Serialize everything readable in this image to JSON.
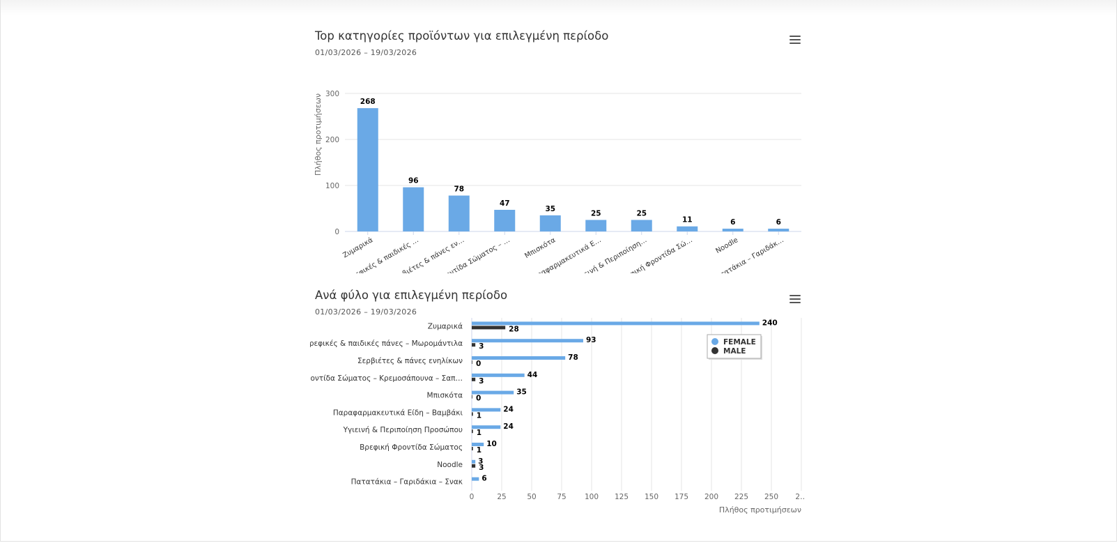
{
  "charts": [
    {
      "title": "Top κατηγορίες προϊόντων για επιλεγμένη περίοδο",
      "subtitle": "01/03/2026 – 19/03/2026",
      "menu_icon": "hamburger-menu-icon"
    },
    {
      "title": "Ανά φύλο για επιλεγμένη περίοδο",
      "subtitle": "01/03/2026 – 19/03/2026",
      "menu_icon": "hamburger-menu-icon"
    }
  ],
  "colors": {
    "primary": "#6aa9e6",
    "male": "#333333",
    "grid": "#e6e6e6",
    "axis": "#ccd6eb",
    "text": "#333333"
  },
  "chart_data": [
    {
      "type": "bar",
      "title": "Top κατηγορίες προϊόντων για επιλεγμένη περίοδο",
      "subtitle": "01/03/2026 – 19/03/2026",
      "ylabel": "Πλήθος προτιμήσεων",
      "ylim": [
        0,
        300
      ],
      "yticks": [
        "0",
        "100",
        "200",
        "300"
      ],
      "grid": true,
      "categories": [
        "Ζυμαρικά",
        "Βρεφικές & παιδικές …",
        "Σερβιέτες & πάνες εν…",
        "Φροντίδα Σώματος – …",
        "Μπισκότα",
        "Παραφαρμακευτικά Ε…",
        "Υγιεινή & Περιποίηση…",
        "Βρεφική Φροντίδα Σώ…",
        "Noodle",
        "Πατατάκια – Γαριδάκ…"
      ],
      "values": [
        268,
        96,
        78,
        47,
        35,
        25,
        25,
        11,
        6,
        6
      ]
    },
    {
      "type": "bar",
      "orientation": "horizontal",
      "title": "Ανά φύλο για επιλεγμένη περίοδο",
      "subtitle": "01/03/2026 – 19/03/2026",
      "xlabel": "Πλήθος προτιμήσεων",
      "xlim": [
        0,
        275
      ],
      "xticks": [
        "0",
        "25",
        "50",
        "75",
        "100",
        "125",
        "150",
        "175",
        "200",
        "225",
        "250",
        "2…"
      ],
      "grid": true,
      "legend": "top-right",
      "categories": [
        "Ζυμαρικά",
        "Βρεφικές & παιδικές πάνες – Μωρομάντιλα",
        "Σερβιέτες & πάνες ενηλίκων",
        "Φροντίδα Σώματος – Κρεμοσάπουνα – Σαπ…",
        "Μπισκότα",
        "Παραφαρμακευτικά Είδη – Βαμβάκι",
        "Υγιεινή & Περιποίηση Προσώπου",
        "Βρεφική Φροντίδα Σώματος",
        "Noodle",
        "Πατατάκια – Γαριδάκια – Σνακ"
      ],
      "series": [
        {
          "name": "FEMALE",
          "color": "#6aa9e6",
          "values": [
            240,
            93,
            78,
            44,
            35,
            24,
            24,
            10,
            3,
            6
          ]
        },
        {
          "name": "MALE",
          "color": "#333333",
          "values": [
            28,
            3,
            0,
            3,
            0,
            1,
            1,
            1,
            3,
            null
          ]
        }
      ]
    }
  ]
}
